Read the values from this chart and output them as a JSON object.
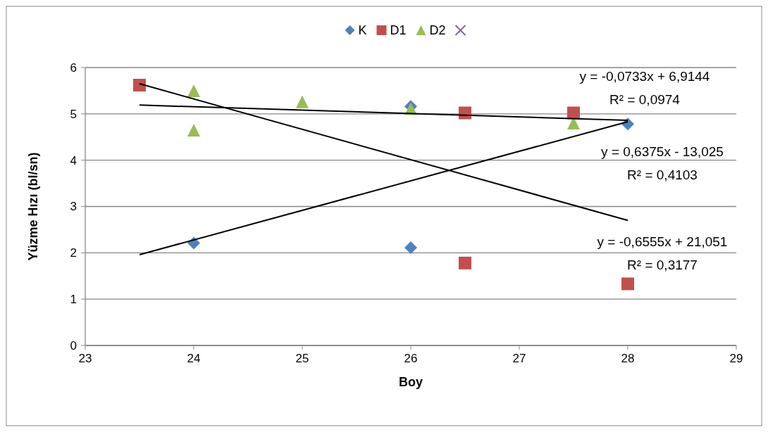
{
  "chart_data": {
    "type": "scatter",
    "xlabel": "Boy",
    "ylabel": "Yüzme Hızı (bl/sn)",
    "xlim": [
      23,
      29
    ],
    "xticks": [
      23,
      24,
      25,
      26,
      27,
      28,
      29
    ],
    "ylim": [
      0,
      6
    ],
    "yticks": [
      0,
      1,
      2,
      3,
      4,
      5,
      6
    ],
    "grid": "y",
    "legend": "top",
    "series": [
      {
        "name": "K",
        "color": "#4f81bd",
        "marker": "diamond",
        "x": [
          24,
          26,
          26,
          28
        ],
        "values": [
          2.21,
          2.11,
          5.16,
          4.78
        ]
      },
      {
        "name": "D1",
        "color": "#c0504d",
        "marker": "square",
        "x": [
          23.5,
          26.5,
          26.5,
          27.5,
          28
        ],
        "values": [
          5.62,
          5.02,
          1.78,
          5.02,
          1.33
        ]
      },
      {
        "name": "D2",
        "color": "#9bbb59",
        "marker": "triangle",
        "x": [
          24,
          24,
          25,
          26,
          27.5
        ],
        "values": [
          5.5,
          4.65,
          5.26,
          5.11,
          4.8
        ]
      },
      {
        "color": "#8064a2",
        "marker": "cross"
      },
      {
        "type": "line",
        "color": "#000000",
        "marker": "none",
        "x": [
          23.5,
          28
        ],
        "values": [
          1.96,
          4.83
        ]
      },
      {
        "type": "line",
        "color": "#000000",
        "marker": "none",
        "x": [
          23.5,
          28
        ],
        "values": [
          5.65,
          2.7
        ]
      },
      {
        "type": "line",
        "color": "#000000",
        "marker": "none",
        "x": [
          23.5,
          28
        ],
        "values": [
          5.19,
          4.86
        ]
      }
    ],
    "annotations": [
      "y = -0,0733x + 6,9144\nR² = 0,0974",
      "y = 0,6375x - 13,025\nR² = 0,4103",
      "y = -0,6555x + 21,051\nR² = 0,3177"
    ]
  }
}
